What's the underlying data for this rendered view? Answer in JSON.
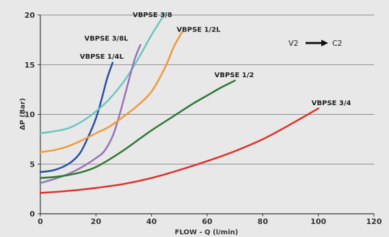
{
  "chart_data": {
    "type": "line",
    "title": "",
    "xlabel": "FLOW - Q (l/min)",
    "ylabel": "ΔP (Bar)",
    "xlim": [
      0,
      120
    ],
    "ylim": [
      0,
      20
    ],
    "xticks": [
      0,
      20,
      40,
      60,
      80,
      100,
      120
    ],
    "yticks": [
      0,
      5,
      10,
      15,
      20
    ],
    "grid": "horizontal",
    "annotation": {
      "from": "V2",
      "to": "C2",
      "arrow": "→"
    },
    "series": [
      {
        "name": "VBPSE 1/4L",
        "color": "#2a4fa8",
        "points": [
          [
            0,
            4.2
          ],
          [
            5,
            4.4
          ],
          [
            10,
            5.0
          ],
          [
            14,
            6.0
          ],
          [
            17,
            7.6
          ],
          [
            20,
            9.6
          ],
          [
            22,
            11.5
          ],
          [
            24,
            13.6
          ],
          [
            26,
            15.2
          ]
        ]
      },
      {
        "name": "VBPSE 3/8",
        "color": "#6cc7bf",
        "points": [
          [
            0,
            8.1
          ],
          [
            5,
            8.3
          ],
          [
            10,
            8.6
          ],
          [
            15,
            9.3
          ],
          [
            20,
            10.3
          ],
          [
            25,
            11.6
          ],
          [
            30,
            13.3
          ],
          [
            35,
            15.5
          ],
          [
            40,
            18.0
          ],
          [
            45,
            20.2
          ]
        ]
      },
      {
        "name": "VBPSE 3/8L",
        "color": "#9a72b8",
        "points": [
          [
            0,
            3.1
          ],
          [
            5,
            3.5
          ],
          [
            10,
            4.0
          ],
          [
            15,
            4.7
          ],
          [
            20,
            5.6
          ],
          [
            23,
            6.3
          ],
          [
            26,
            7.8
          ],
          [
            28,
            9.5
          ],
          [
            30,
            11.5
          ],
          [
            32,
            13.6
          ],
          [
            34,
            15.6
          ],
          [
            36,
            17.0
          ]
        ]
      },
      {
        "name": "VBPSE 1/2L",
        "color": "#f09a3a",
        "points": [
          [
            0,
            6.2
          ],
          [
            5,
            6.4
          ],
          [
            10,
            6.8
          ],
          [
            15,
            7.4
          ],
          [
            20,
            8.1
          ],
          [
            25,
            8.8
          ],
          [
            30,
            9.8
          ],
          [
            35,
            10.9
          ],
          [
            40,
            12.3
          ],
          [
            45,
            14.8
          ],
          [
            48,
            16.8
          ],
          [
            51,
            18.3
          ]
        ]
      },
      {
        "name": "VBPSE 1/2",
        "color": "#2f7a35",
        "points": [
          [
            0,
            3.6
          ],
          [
            5,
            3.7
          ],
          [
            10,
            3.9
          ],
          [
            15,
            4.2
          ],
          [
            20,
            4.7
          ],
          [
            25,
            5.5
          ],
          [
            30,
            6.4
          ],
          [
            35,
            7.4
          ],
          [
            40,
            8.4
          ],
          [
            45,
            9.3
          ],
          [
            50,
            10.2
          ],
          [
            55,
            11.1
          ],
          [
            60,
            11.9
          ],
          [
            65,
            12.7
          ],
          [
            70,
            13.4
          ]
        ]
      },
      {
        "name": "VBPSE 3/4",
        "color": "#e0312a",
        "points": [
          [
            0,
            2.1
          ],
          [
            10,
            2.3
          ],
          [
            20,
            2.6
          ],
          [
            30,
            3.0
          ],
          [
            40,
            3.6
          ],
          [
            50,
            4.4
          ],
          [
            60,
            5.3
          ],
          [
            70,
            6.3
          ],
          [
            80,
            7.5
          ],
          [
            90,
            9.0
          ],
          [
            100,
            10.6
          ]
        ]
      }
    ]
  }
}
